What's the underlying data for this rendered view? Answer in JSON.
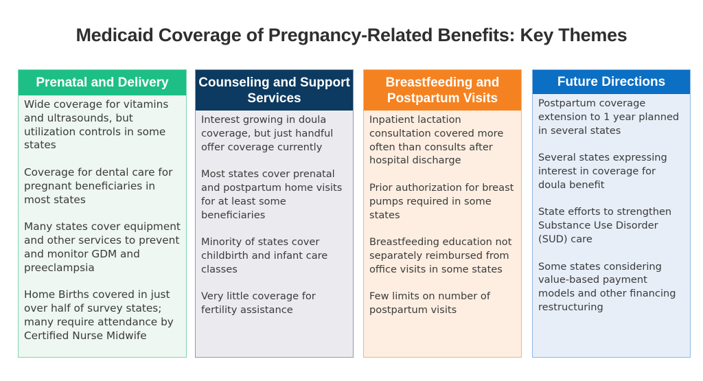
{
  "title": "Medicaid Coverage of Pregnancy-Related Benefits: Key Themes",
  "colors": {
    "green": "#1dbf86",
    "navy": "#0c3a60",
    "orange": "#f58220",
    "blue": "#0b6fc4"
  },
  "columns": [
    {
      "header": "Prenatal and Delivery",
      "items": [
        "Wide coverage for vitamins and ultrasounds, but utilization controls in some states",
        "Coverage for dental care for pregnant beneficiaries in most states",
        "Many states cover equipment and other services to prevent and monitor GDM and preeclampsia",
        "Home Births covered in just over half of survey states; many require attendance by Certified Nurse Midwife"
      ]
    },
    {
      "header": "Counseling and Support Services",
      "items": [
        "Interest growing in doula coverage, but just handful offer coverage currently",
        "Most states cover prenatal and postpartum home visits for at least some beneficiaries",
        "Minority of states cover childbirth and infant care classes",
        "Very little coverage for fertility assistance"
      ]
    },
    {
      "header": "Breastfeeding and Postpartum Visits",
      "items": [
        "Inpatient lactation consultation covered more often than consults after hospital discharge",
        "Prior authorization for breast pumps required in some states",
        "Breastfeeding education not separately reimbursed from office visits in some states",
        "Few limits on number of postpartum visits"
      ]
    },
    {
      "header": "Future Directions",
      "items": [
        "Postpartum coverage extension to 1 year planned in several states",
        "Several states expressing interest in coverage for doula benefit",
        "State efforts to strengthen Substance Use Disorder (SUD) care",
        "Some states considering value-based payment models and other financing restructuring"
      ]
    }
  ]
}
